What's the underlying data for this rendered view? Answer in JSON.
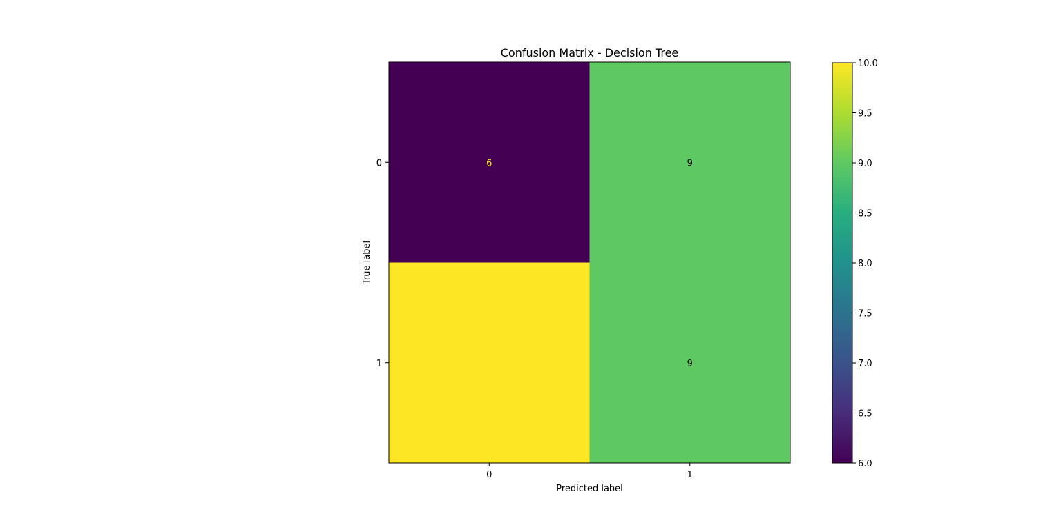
{
  "chart_data": {
    "type": "heatmap",
    "title": "Confusion Matrix - Decision Tree",
    "xlabel": "Predicted label",
    "ylabel": "True label",
    "x_categories": [
      "0",
      "1"
    ],
    "y_categories": [
      "0",
      "1"
    ],
    "values": [
      [
        6,
        9
      ],
      [
        10,
        9
      ]
    ],
    "colormap": "viridis",
    "colorbar": {
      "range": [
        6.0,
        10.0
      ],
      "ticks": [
        "6.0",
        "6.5",
        "7.0",
        "7.5",
        "8.0",
        "8.5",
        "9.0",
        "9.5",
        "10.0"
      ]
    },
    "cell_colors": [
      [
        "#440154",
        "#5ec962"
      ],
      [
        "#fde725",
        "#5ec962"
      ]
    ],
    "text_colors": [
      [
        "#fde725",
        "#000000"
      ],
      [
        "#fde725",
        "#000000"
      ]
    ],
    "grid": false
  }
}
